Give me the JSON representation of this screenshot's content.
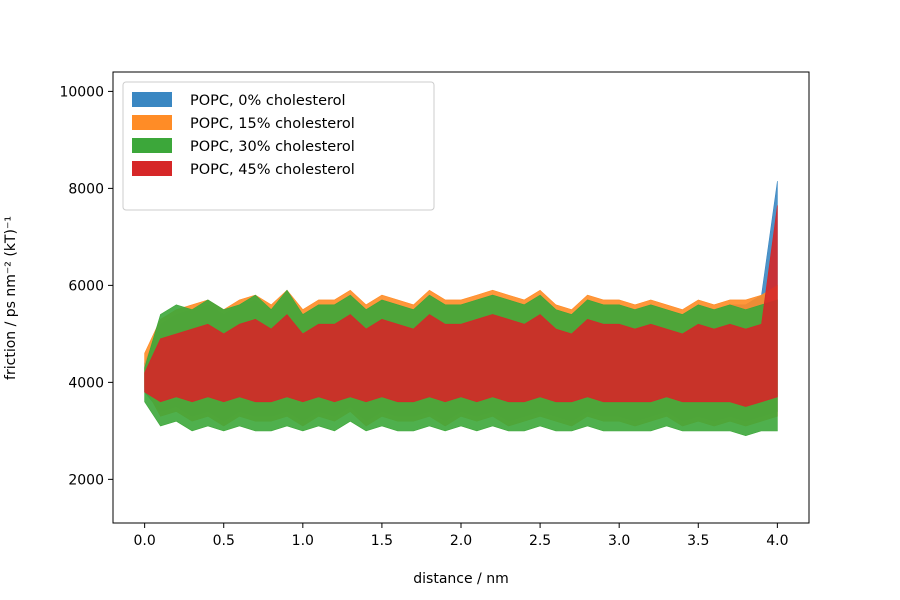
{
  "chart_data": {
    "type": "area",
    "xlabel": "distance / nm",
    "ylabel": "friction / ps nm⁻² (kT)⁻¹",
    "xlim": [
      -0.2,
      4.2
    ],
    "ylim": [
      1100,
      10400
    ],
    "xticks": [
      0.0,
      0.5,
      1.0,
      1.5,
      2.0,
      2.5,
      3.0,
      3.5,
      4.0
    ],
    "xtick_labels": [
      "0.0",
      "0.5",
      "1.0",
      "1.5",
      "2.0",
      "2.5",
      "3.0",
      "3.5",
      "4.0"
    ],
    "yticks": [
      2000,
      4000,
      6000,
      8000,
      10000
    ],
    "ytick_labels": [
      "2000",
      "4000",
      "6000",
      "8000",
      "10000"
    ],
    "grid": false,
    "legend_position": "top-left",
    "x": [
      0.0,
      0.1,
      0.2,
      0.3,
      0.4,
      0.5,
      0.6,
      0.7,
      0.8,
      0.9,
      1.0,
      1.1,
      1.2,
      1.3,
      1.4,
      1.5,
      1.6,
      1.7,
      1.8,
      1.9,
      2.0,
      2.1,
      2.2,
      2.3,
      2.4,
      2.5,
      2.6,
      2.7,
      2.8,
      2.9,
      3.0,
      3.1,
      3.2,
      3.3,
      3.4,
      3.5,
      3.6,
      3.7,
      3.8,
      3.9,
      4.0
    ],
    "series": [
      {
        "name": "POPC, 0% cholesterol",
        "color": "#3a87c2",
        "lower": [
          3800,
          3400,
          3500,
          3300,
          3400,
          3200,
          3400,
          3300,
          3300,
          3400,
          3200,
          3400,
          3300,
          3500,
          3200,
          3400,
          3300,
          3300,
          3400,
          3200,
          3400,
          3300,
          3400,
          3200,
          3300,
          3400,
          3300,
          3200,
          3400,
          3300,
          3300,
          3200,
          3300,
          3400,
          3200,
          3300,
          3200,
          3300,
          3200,
          3300,
          3400
        ],
        "upper": [
          4400,
          5200,
          5400,
          5500,
          5600,
          5400,
          5600,
          5700,
          5500,
          5800,
          5400,
          5600,
          5600,
          5800,
          5500,
          5700,
          5600,
          5500,
          5800,
          5600,
          5600,
          5700,
          5800,
          5700,
          5600,
          5800,
          5500,
          5400,
          5700,
          5600,
          5600,
          5500,
          5600,
          5500,
          5400,
          5600,
          5500,
          5600,
          5600,
          5800,
          8150
        ]
      },
      {
        "name": "POPC, 15% cholesterol",
        "color": "#ff8c26",
        "lower": [
          3900,
          3300,
          3400,
          3200,
          3300,
          3100,
          3300,
          3200,
          3200,
          3300,
          3100,
          3300,
          3200,
          3400,
          3100,
          3300,
          3200,
          3200,
          3300,
          3100,
          3300,
          3200,
          3300,
          3100,
          3200,
          3300,
          3200,
          3100,
          3300,
          3200,
          3200,
          3100,
          3200,
          3300,
          3100,
          3200,
          3100,
          3200,
          3100,
          3200,
          3300
        ],
        "upper": [
          4600,
          5300,
          5500,
          5600,
          5700,
          5500,
          5700,
          5800,
          5600,
          5900,
          5500,
          5700,
          5700,
          5900,
          5600,
          5800,
          5700,
          5600,
          5900,
          5700,
          5700,
          5800,
          5900,
          5800,
          5700,
          5900,
          5600,
          5500,
          5800,
          5700,
          5700,
          5600,
          5700,
          5600,
          5500,
          5700,
          5600,
          5700,
          5700,
          5800,
          6000
        ]
      },
      {
        "name": "POPC, 30% cholesterol",
        "color": "#3ca73a",
        "lower": [
          3600,
          3100,
          3200,
          3000,
          3100,
          3000,
          3100,
          3000,
          3000,
          3100,
          3000,
          3100,
          3000,
          3200,
          3000,
          3100,
          3000,
          3000,
          3100,
          3000,
          3100,
          3000,
          3100,
          3000,
          3000,
          3100,
          3000,
          3000,
          3100,
          3000,
          3000,
          3000,
          3000,
          3100,
          3000,
          3000,
          3000,
          3000,
          2900,
          3000,
          3000
        ],
        "upper": [
          4300,
          5400,
          5600,
          5500,
          5700,
          5500,
          5600,
          5800,
          5500,
          5900,
          5400,
          5600,
          5600,
          5800,
          5500,
          5700,
          5600,
          5500,
          5800,
          5600,
          5600,
          5700,
          5800,
          5700,
          5600,
          5800,
          5500,
          5400,
          5700,
          5600,
          5600,
          5500,
          5600,
          5500,
          5400,
          5600,
          5500,
          5600,
          5500,
          5600,
          5700
        ]
      },
      {
        "name": "POPC, 45% cholesterol",
        "color": "#d62728",
        "lower": [
          3800,
          3600,
          3700,
          3600,
          3700,
          3600,
          3700,
          3600,
          3600,
          3700,
          3600,
          3700,
          3600,
          3700,
          3600,
          3700,
          3600,
          3600,
          3700,
          3600,
          3700,
          3600,
          3700,
          3600,
          3600,
          3700,
          3600,
          3600,
          3700,
          3600,
          3600,
          3600,
          3600,
          3700,
          3600,
          3600,
          3600,
          3600,
          3500,
          3600,
          3700
        ],
        "upper": [
          4200,
          4900,
          5000,
          5100,
          5200,
          5000,
          5200,
          5300,
          5100,
          5400,
          5000,
          5200,
          5200,
          5400,
          5100,
          5300,
          5200,
          5100,
          5400,
          5200,
          5200,
          5300,
          5400,
          5300,
          5200,
          5400,
          5100,
          5000,
          5300,
          5200,
          5200,
          5100,
          5200,
          5100,
          5000,
          5200,
          5100,
          5200,
          5100,
          5200,
          7650
        ]
      }
    ]
  }
}
